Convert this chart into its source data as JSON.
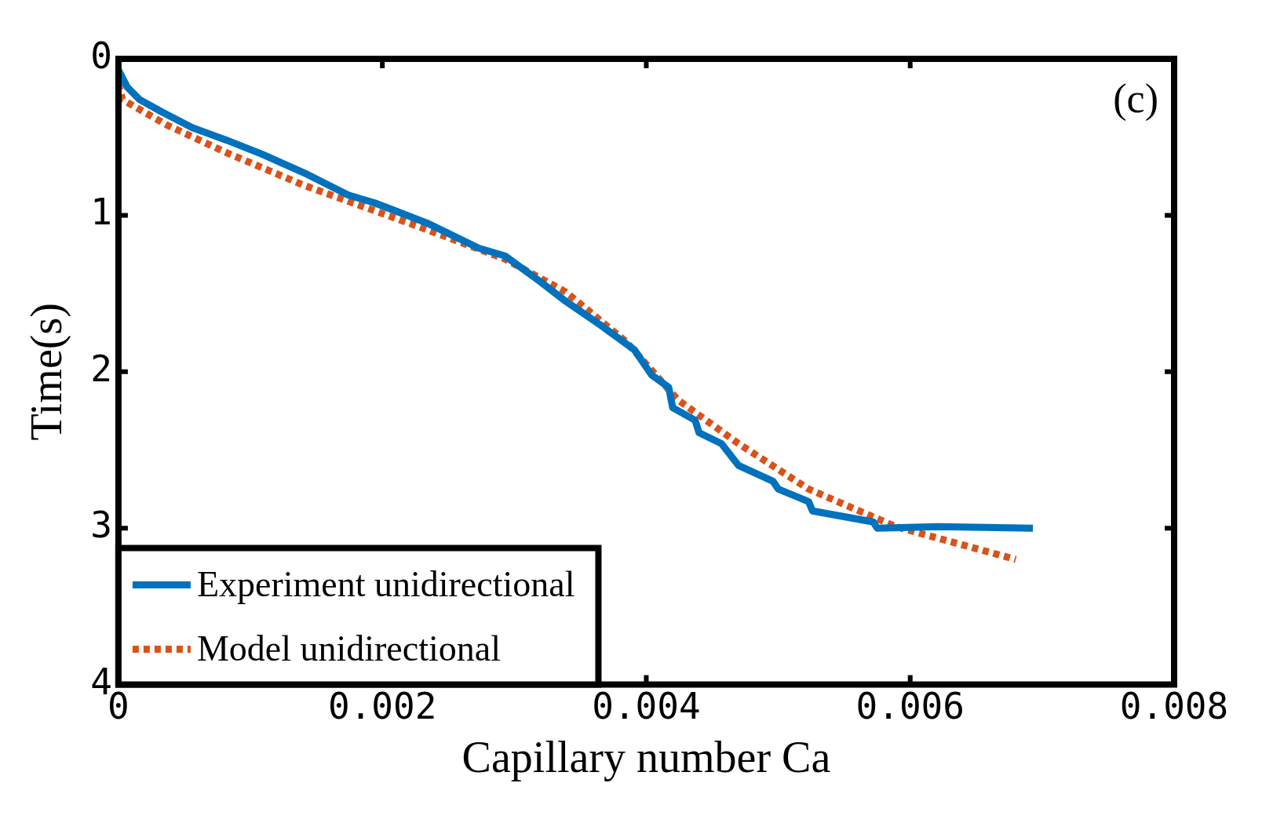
{
  "chart_data": {
    "type": "line",
    "xlabel": "Capillary number Ca",
    "ylabel": "Time(s)",
    "annotations": [
      "(c)"
    ],
    "xlim": [
      0,
      0.008
    ],
    "xticks": [
      0,
      0.002,
      0.004,
      0.006,
      0.008
    ],
    "ylim": [
      4,
      0
    ],
    "yticks": [
      0,
      1,
      2,
      3,
      4
    ],
    "grid": false,
    "legend": "bottom left",
    "marker": "none",
    "series": [
      {
        "name": "Experiment unidirectional",
        "color": "#0072bd",
        "line_style": "solid",
        "x": [
          0,
          6.6e-05,
          0.00016,
          0.00033,
          0.00056,
          0.00082,
          0.00109,
          0.00141,
          0.00174,
          0.00194,
          0.00234,
          0.00273,
          0.00293,
          0.00319,
          0.00339,
          0.00365,
          0.00391,
          0.00404,
          0.00417,
          0.0042,
          0.00437,
          0.0044,
          0.00457,
          0.0047,
          0.00496,
          0.005,
          0.00523,
          0.00526,
          0.00572,
          0.00575,
          0.00621,
          0.00693
        ],
        "values": [
          0.07,
          0.18,
          0.26,
          0.34,
          0.44,
          0.52,
          0.61,
          0.73,
          0.87,
          0.92,
          1.05,
          1.21,
          1.26,
          1.42,
          1.55,
          1.7,
          1.86,
          2.02,
          2.1,
          2.23,
          2.31,
          2.39,
          2.46,
          2.6,
          2.7,
          2.75,
          2.83,
          2.89,
          2.96,
          3.0,
          2.99,
          3.0
        ]
      },
      {
        "name": "Model unidirectional",
        "color": "#d95319",
        "line_style": "dotted",
        "x": [
          0,
          3e-05,
          0.00036,
          0.00082,
          0.00141,
          0.00194,
          0.00246,
          0.00293,
          0.00339,
          0.00385,
          0.00424,
          0.0047,
          0.00523,
          0.00589,
          0.0068
        ],
        "values": [
          0.16,
          0.26,
          0.42,
          0.6,
          0.81,
          0.97,
          1.13,
          1.28,
          1.49,
          1.81,
          2.18,
          2.46,
          2.75,
          2.99,
          3.2
        ]
      }
    ]
  }
}
